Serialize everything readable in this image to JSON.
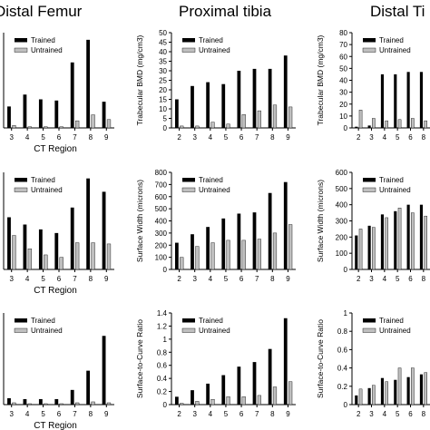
{
  "figure": {
    "columns": [
      "Distal Femur",
      "Proximal tibia",
      "Distal Ti"
    ]
  },
  "chart_data": [
    {
      "type": "bar",
      "panel": "distal-femur-trabecular-bmd",
      "xlabel": "CT Region",
      "ylabel": "",
      "categories": [
        "3",
        "4",
        "5",
        "6",
        "7",
        "8",
        "9"
      ],
      "yticks": [],
      "ylim": [
        0,
        80
      ],
      "series": [
        {
          "name": "Trained",
          "color": "#000000",
          "values": [
            18,
            28,
            24,
            23,
            55,
            74,
            22
          ]
        },
        {
          "name": "Untrained",
          "color": "#bfbfbf",
          "values": [
            2,
            1,
            1,
            1,
            6,
            11,
            7
          ]
        }
      ],
      "legend": "top-left"
    },
    {
      "type": "bar",
      "panel": "proximal-tibia-trabecular-bmd",
      "xlabel": "",
      "ylabel": "Trabecular BMD (mg/cm3)",
      "categories": [
        "2",
        "3",
        "4",
        "5",
        "6",
        "7",
        "8",
        "9"
      ],
      "yticks": [
        0,
        5,
        10,
        15,
        20,
        25,
        30,
        35,
        40,
        45,
        50
      ],
      "ylim": [
        0,
        50
      ],
      "series": [
        {
          "name": "Trained",
          "color": "#000000",
          "values": [
            15,
            22,
            24,
            23,
            30,
            31,
            31,
            38
          ]
        },
        {
          "name": "Untrained",
          "color": "#bfbfbf",
          "values": [
            1,
            1,
            3,
            2,
            7,
            9,
            12,
            11
          ]
        }
      ],
      "legend": "top-left"
    },
    {
      "type": "bar",
      "panel": "distal-tibia-trabecular-bmd",
      "xlabel": "",
      "ylabel": "Trabecular BMD (mg/cm3)",
      "categories": [
        "2",
        "3",
        "4",
        "5",
        "6",
        "8"
      ],
      "yticks": [
        0,
        10,
        20,
        30,
        40,
        50,
        60,
        70,
        80
      ],
      "ylim": [
        0,
        80
      ],
      "series": [
        {
          "name": "Trained",
          "color": "#000000",
          "values": [
            1,
            2,
            45,
            45,
            47,
            47
          ]
        },
        {
          "name": "Untrained",
          "color": "#bfbfbf",
          "values": [
            15,
            8,
            6,
            7,
            8,
            6
          ]
        }
      ],
      "legend": "top-left"
    },
    {
      "type": "bar",
      "panel": "distal-femur-surface-width",
      "xlabel": "CT Region",
      "ylabel": "",
      "categories": [
        "3",
        "4",
        "5",
        "6",
        "7",
        "8",
        "9"
      ],
      "yticks": [],
      "ylim": [
        0,
        800
      ],
      "series": [
        {
          "name": "Trained",
          "color": "#000000",
          "values": [
            430,
            370,
            330,
            300,
            510,
            750,
            640
          ]
        },
        {
          "name": "Untrained",
          "color": "#bfbfbf",
          "values": [
            280,
            170,
            120,
            100,
            220,
            220,
            210
          ]
        }
      ],
      "legend": "top-left"
    },
    {
      "type": "bar",
      "panel": "proximal-tibia-surface-width",
      "xlabel": "",
      "ylabel": "Surface Width (microns)",
      "categories": [
        "2",
        "3",
        "4",
        "5",
        "6",
        "7",
        "8",
        "9"
      ],
      "yticks": [
        0,
        100,
        200,
        300,
        400,
        500,
        600,
        700,
        800
      ],
      "ylim": [
        0,
        800
      ],
      "series": [
        {
          "name": "Trained",
          "color": "#000000",
          "values": [
            220,
            290,
            350,
            420,
            460,
            470,
            630,
            720
          ]
        },
        {
          "name": "Untrained",
          "color": "#bfbfbf",
          "values": [
            100,
            190,
            220,
            240,
            240,
            250,
            300,
            370
          ]
        }
      ],
      "legend": "top-left"
    },
    {
      "type": "bar",
      "panel": "distal-tibia-surface-width",
      "xlabel": "",
      "ylabel": "Surface Width (microns)",
      "categories": [
        "2",
        "3",
        "4",
        "5",
        "6",
        "8"
      ],
      "yticks": [
        0,
        100,
        200,
        300,
        400,
        500,
        600
      ],
      "ylim": [
        0,
        600
      ],
      "series": [
        {
          "name": "Trained",
          "color": "#000000",
          "values": [
            210,
            270,
            340,
            360,
            400,
            400
          ]
        },
        {
          "name": "Untrained",
          "color": "#bfbfbf",
          "values": [
            250,
            260,
            320,
            380,
            350,
            330
          ]
        }
      ],
      "legend": "top-left"
    },
    {
      "type": "bar",
      "panel": "distal-femur-surface-to-curve",
      "xlabel": "CT Region",
      "ylabel": "",
      "categories": [
        "3",
        "4",
        "5",
        "6",
        "7",
        "8",
        "9"
      ],
      "yticks": [],
      "ylim": [
        0,
        1.0
      ],
      "series": [
        {
          "name": "Trained",
          "color": "#000000",
          "values": [
            0.07,
            0.06,
            0.06,
            0.06,
            0.16,
            0.37,
            0.75
          ]
        },
        {
          "name": "Untrained",
          "color": "#bfbfbf",
          "values": [
            0.02,
            0.01,
            0.01,
            0.01,
            0.02,
            0.03,
            0.02
          ]
        }
      ],
      "legend": "top-left"
    },
    {
      "type": "bar",
      "panel": "proximal-tibia-surface-to-curve",
      "xlabel": "",
      "ylabel": "Surface-to-Curve Ratio",
      "categories": [
        "2",
        "3",
        "4",
        "5",
        "6",
        "7",
        "8",
        "9"
      ],
      "yticks": [
        0,
        0.2,
        0.4,
        0.6,
        0.8,
        1.0,
        1.2,
        1.4
      ],
      "ylim": [
        0,
        1.4
      ],
      "series": [
        {
          "name": "Trained",
          "color": "#000000",
          "values": [
            0.12,
            0.22,
            0.32,
            0.45,
            0.58,
            0.65,
            0.85,
            1.32
          ]
        },
        {
          "name": "Untrained",
          "color": "#bfbfbf",
          "values": [
            0.02,
            0.05,
            0.08,
            0.12,
            0.12,
            0.14,
            0.27,
            0.35
          ]
        }
      ],
      "legend": "top-left"
    },
    {
      "type": "bar",
      "panel": "distal-tibia-surface-to-curve",
      "xlabel": "",
      "ylabel": "Surface-to-Curve Ratio",
      "categories": [
        "2",
        "3",
        "4",
        "5",
        "6",
        "8"
      ],
      "yticks": [
        0,
        0.2,
        0.4,
        0.6,
        0.8,
        1.0
      ],
      "ylim": [
        0,
        1.0
      ],
      "series": [
        {
          "name": "Trained",
          "color": "#000000",
          "values": [
            0.1,
            0.18,
            0.29,
            0.27,
            0.3,
            0.33
          ]
        },
        {
          "name": "Untrained",
          "color": "#bfbfbf",
          "values": [
            0.17,
            0.21,
            0.25,
            0.4,
            0.4,
            0.35
          ]
        }
      ],
      "legend": "top-left"
    }
  ]
}
